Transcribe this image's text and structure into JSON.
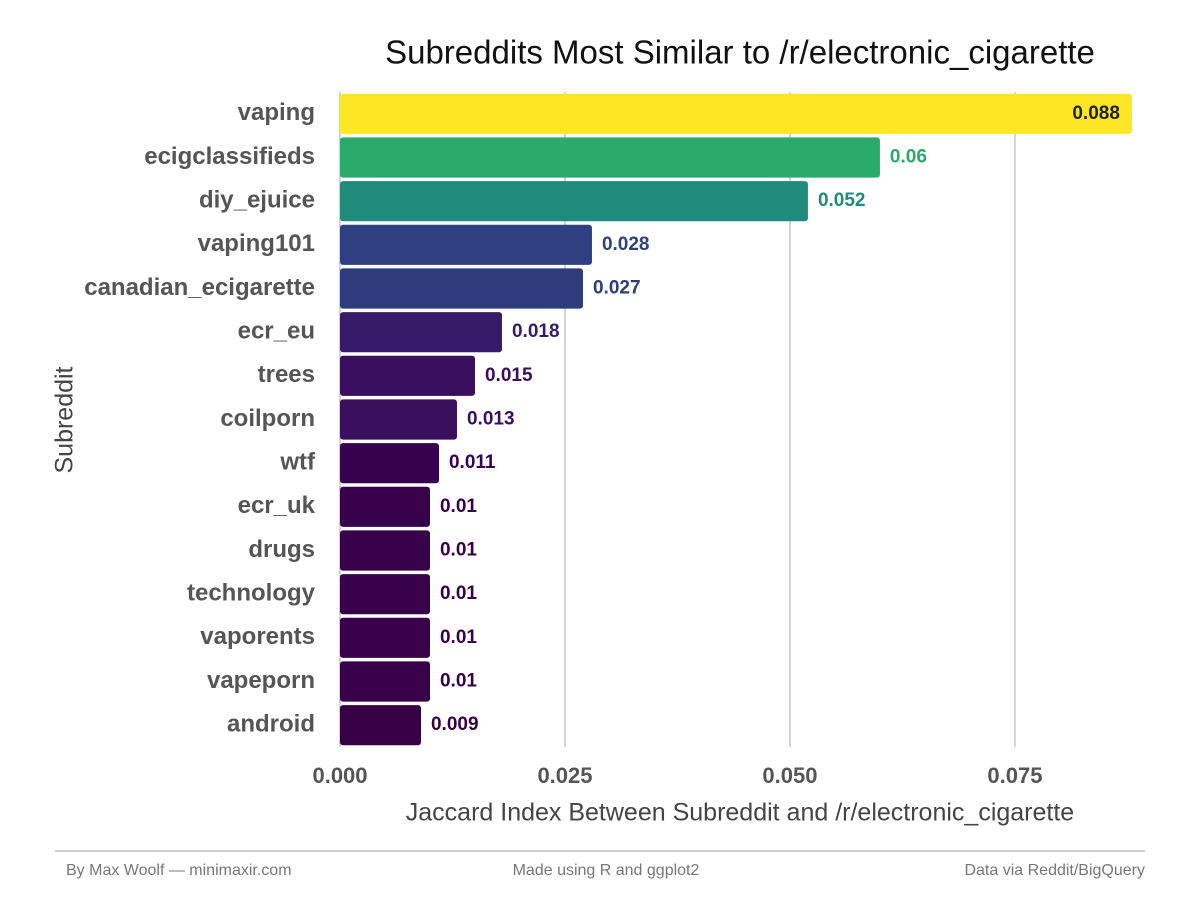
{
  "chart_data": {
    "type": "bar",
    "orientation": "horizontal",
    "title": "Subreddits Most Similar to /r/electronic_cigarette",
    "x_label": "Jaccard Index Between Subreddit and /r/electronic_cigarette",
    "y_label": "Subreddit",
    "categories": [
      "vaping",
      "ecigclassifieds",
      "diy_ejuice",
      "vaping101",
      "canadian_ecigarette",
      "ecr_eu",
      "trees",
      "coilporn",
      "wtf",
      "ecr_uk",
      "drugs",
      "technology",
      "vaporents",
      "vapeporn",
      "android"
    ],
    "values": [
      0.088,
      0.06,
      0.052,
      0.028,
      0.027,
      0.018,
      0.015,
      0.013,
      0.011,
      0.01,
      0.01,
      0.01,
      0.01,
      0.01,
      0.009
    ],
    "colors": [
      "#fde725",
      "#2aab6b",
      "#1f8b7a",
      "#2e407f",
      "#2e3b7c",
      "#361c68",
      "#3b0f60",
      "#390e5c",
      "#38014f",
      "#38004a",
      "#38004a",
      "#38004a",
      "#38004a",
      "#38004a",
      "#370044"
    ],
    "xlim": [
      0,
      0.0889
    ],
    "xticks": [
      {
        "value": 0,
        "label": "0.000"
      },
      {
        "value": 0.025,
        "label": "0.025"
      },
      {
        "value": 0.05,
        "label": "0.050"
      },
      {
        "value": 0.075,
        "label": "0.075"
      }
    ],
    "grid": true
  },
  "footer": {
    "left": "By Max Woolf — minimaxir.com",
    "center": "Made using R and ggplot2",
    "right": "Data via Reddit/BigQuery"
  }
}
